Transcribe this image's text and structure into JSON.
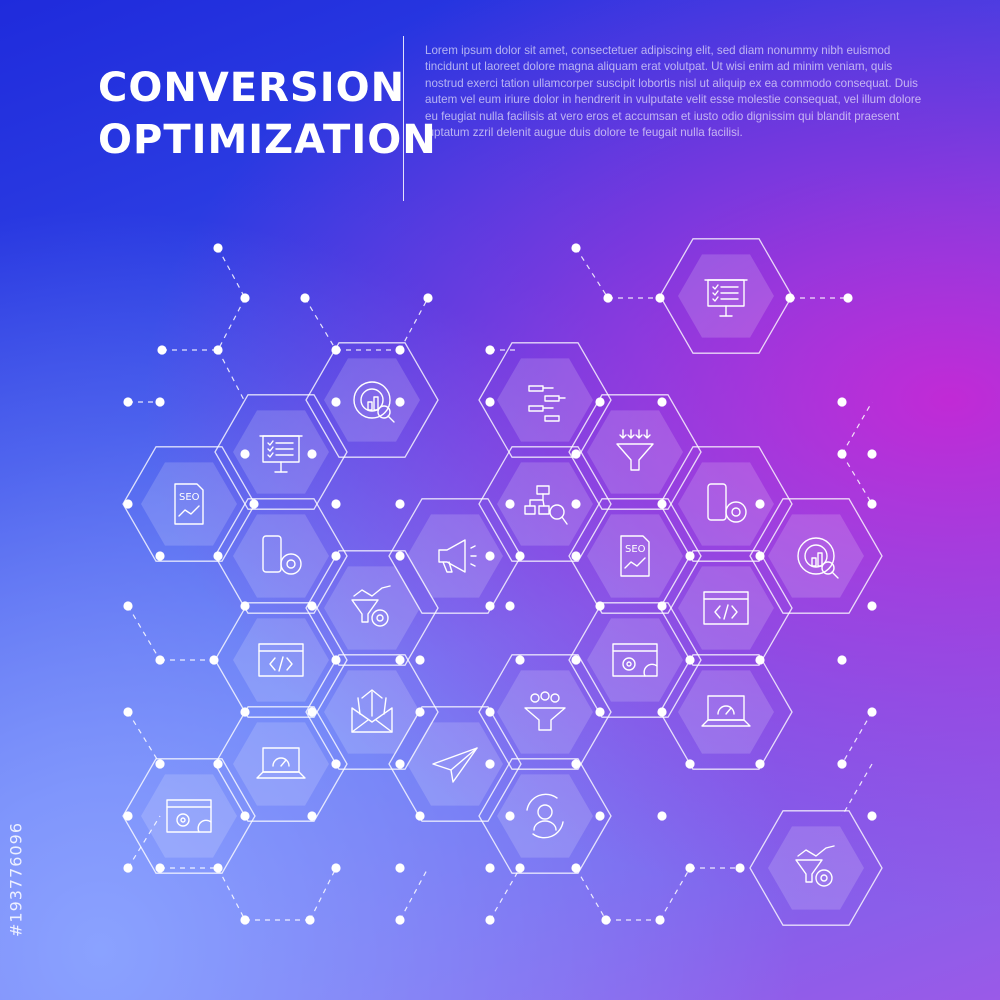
{
  "title": {
    "line1": "CONVERSION",
    "line2": "OPTIMIZATION"
  },
  "description": "Lorem ipsum dolor sit amet, consectetuer adipiscing elit, sed diam nonummy nibh euismod tincidunt ut laoreet dolore magna aliquam erat volutpat. Ut wisi enim ad minim veniam, quis nostrud exerci tation ullamcorper suscipit lobortis nisl ut aliquip ex ea commodo consequat. Duis autem vel eum iriure dolor in hendrerit in vulputate velit esse molestie consequat, vel illum dolore eu feugiat nulla facilisis at vero eros et accumsan et iusto odio dignissim qui blandit praesent luptatum zzril delenit augue duis dolore te feugait nulla facilisi.",
  "watermark": "#193776096",
  "icons": [
    "presentation-checklist-icon",
    "data-analysis-icon",
    "flowchart-icon",
    "presentation-board-icon",
    "funnel-icon",
    "seo-document-icon",
    "hierarchy-search-icon",
    "mobile-settings-icon",
    "mobile-settings-icon",
    "megaphone-icon",
    "seo-document-icon",
    "data-analysis-icon",
    "growth-funnel-icon",
    "code-window-icon",
    "code-window-icon",
    "web-settings-icon",
    "email-icon",
    "audience-funnel-icon",
    "laptop-speed-icon",
    "laptop-speed-icon",
    "paper-plane-icon",
    "web-settings-icon",
    "user-refresh-icon",
    "growth-funnel-icon"
  ],
  "colors": {
    "hex_fill": "#ffffff",
    "line": "#ffffff",
    "accent_blue": "#1f2bdc",
    "accent_magenta": "#c12ad6"
  }
}
